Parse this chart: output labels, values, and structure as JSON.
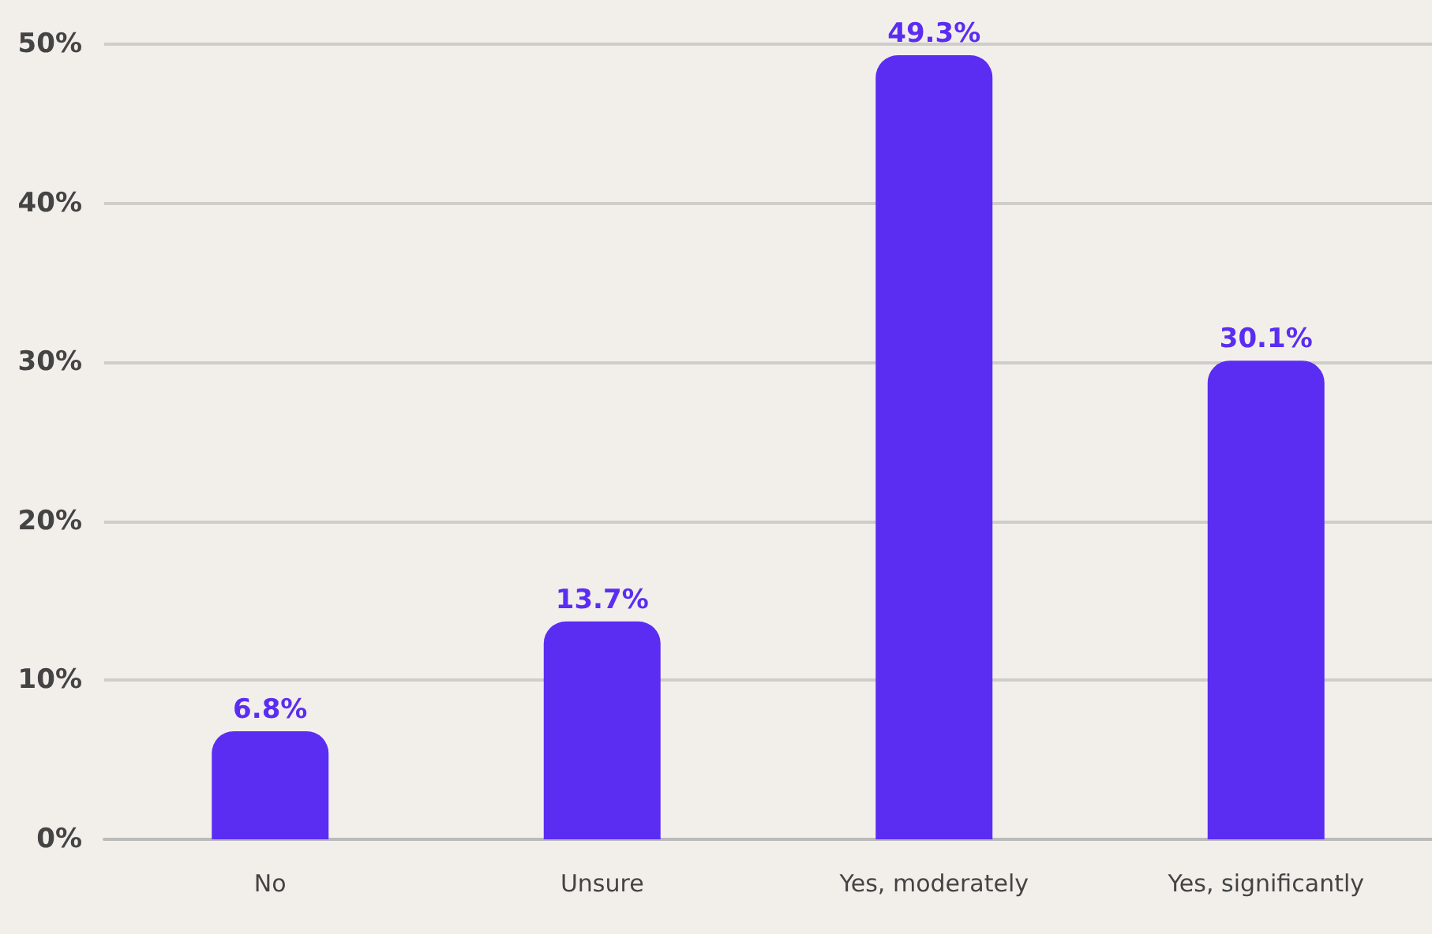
{
  "chart_data": {
    "type": "bar",
    "categories": [
      "No",
      "Unsure",
      "Yes, moderately",
      "Yes, significantly"
    ],
    "values": [
      6.8,
      13.7,
      49.3,
      30.1
    ],
    "color": "#5b2df2",
    "ylim": [
      0,
      50
    ],
    "yticks": [
      {
        "value": 0,
        "label": "0%"
      },
      {
        "value": 10,
        "label": "10%"
      },
      {
        "value": 20,
        "label": "20%"
      },
      {
        "value": 30,
        "label": "30%"
      },
      {
        "value": 40,
        "label": "40%"
      },
      {
        "value": 50,
        "label": "50%"
      }
    ],
    "value_labels": [
      "6.8%",
      "13.7%",
      "49.3%",
      "30.1%"
    ],
    "grid": true
  }
}
